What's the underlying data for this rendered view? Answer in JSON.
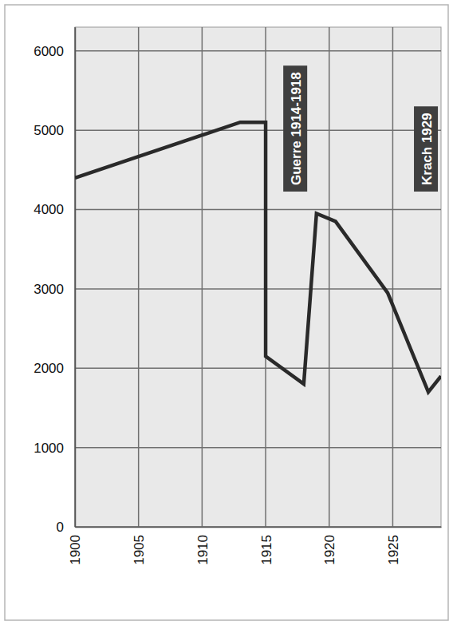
{
  "chart_data": {
    "type": "line",
    "x": [
      1900,
      1913,
      1915,
      1915,
      1918,
      1919,
      1920.5,
      1924.6,
      1927.8,
      1928.8
    ],
    "values": [
      4400,
      5100,
      5100,
      2150,
      1800,
      3950,
      3850,
      2950,
      1700,
      1900
    ],
    "color": "#2a2a2a",
    "xlim": [
      1900,
      1928.8
    ],
    "xticks": [
      1900,
      1905,
      1910,
      1915,
      1920,
      1925
    ],
    "ylim": [
      0,
      6300
    ],
    "yticks": [
      0,
      1000,
      2000,
      3000,
      4000,
      5000,
      6000
    ],
    "grid": true,
    "annotations": [
      "Guerre 1914-1918",
      "Krach 1929"
    ]
  }
}
